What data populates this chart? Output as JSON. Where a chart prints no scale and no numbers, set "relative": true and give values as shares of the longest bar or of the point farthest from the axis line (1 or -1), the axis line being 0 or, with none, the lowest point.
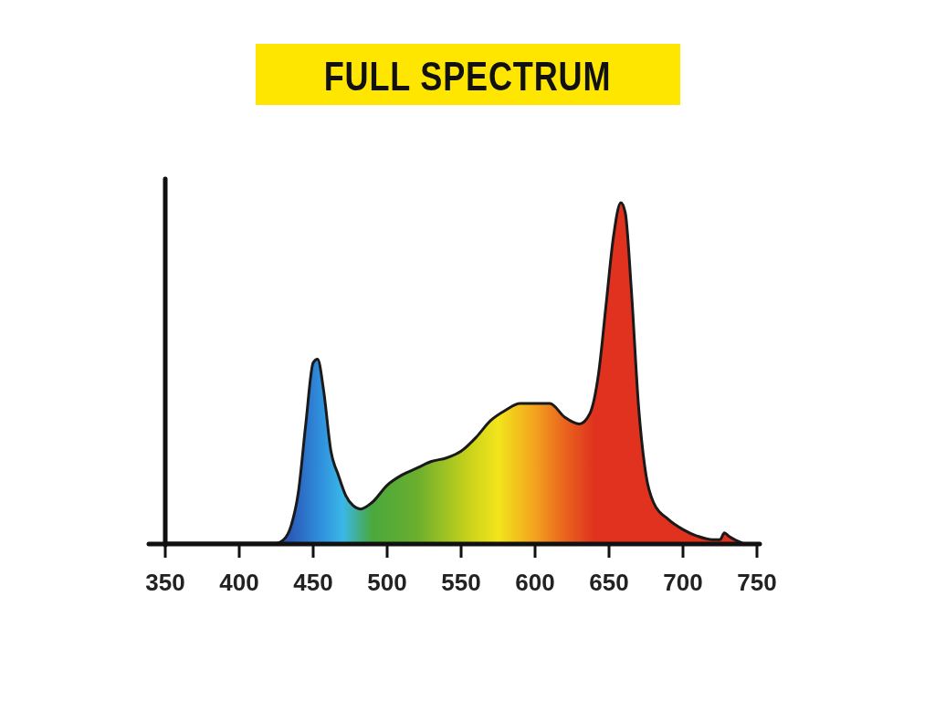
{
  "chart_data": {
    "type": "area",
    "title": "FULL SPECTRUM",
    "relative": true,
    "x": [
      350,
      425,
      430,
      435,
      440,
      445,
      450,
      453,
      457,
      462,
      467,
      472,
      477,
      482,
      490,
      500,
      510,
      520,
      530,
      540,
      550,
      560,
      570,
      580,
      590,
      600,
      610,
      620,
      630,
      637,
      643,
      648,
      653,
      658,
      661,
      665,
      670,
      675,
      680,
      690,
      700,
      710,
      720,
      725,
      728,
      731,
      735,
      740
    ],
    "series": [
      {
        "color": "#1a1a1a",
        "values": [
          0,
          0,
          0.01,
          0.05,
          0.15,
          0.35,
          0.53,
          0.54,
          0.45,
          0.27,
          0.2,
          0.14,
          0.11,
          0.1,
          0.12,
          0.17,
          0.2,
          0.22,
          0.24,
          0.25,
          0.27,
          0.31,
          0.36,
          0.39,
          0.41,
          0.41,
          0.41,
          0.37,
          0.35,
          0.38,
          0.5,
          0.7,
          0.9,
          1,
          0.97,
          0.75,
          0.4,
          0.2,
          0.12,
          0.07,
          0.04,
          0.02,
          0.01,
          0.01,
          0.03,
          0.02,
          0.01,
          0
        ]
      }
    ],
    "xlim": [
      350,
      750
    ],
    "xticks": [
      350,
      400,
      450,
      500,
      550,
      600,
      650,
      700,
      750
    ]
  }
}
